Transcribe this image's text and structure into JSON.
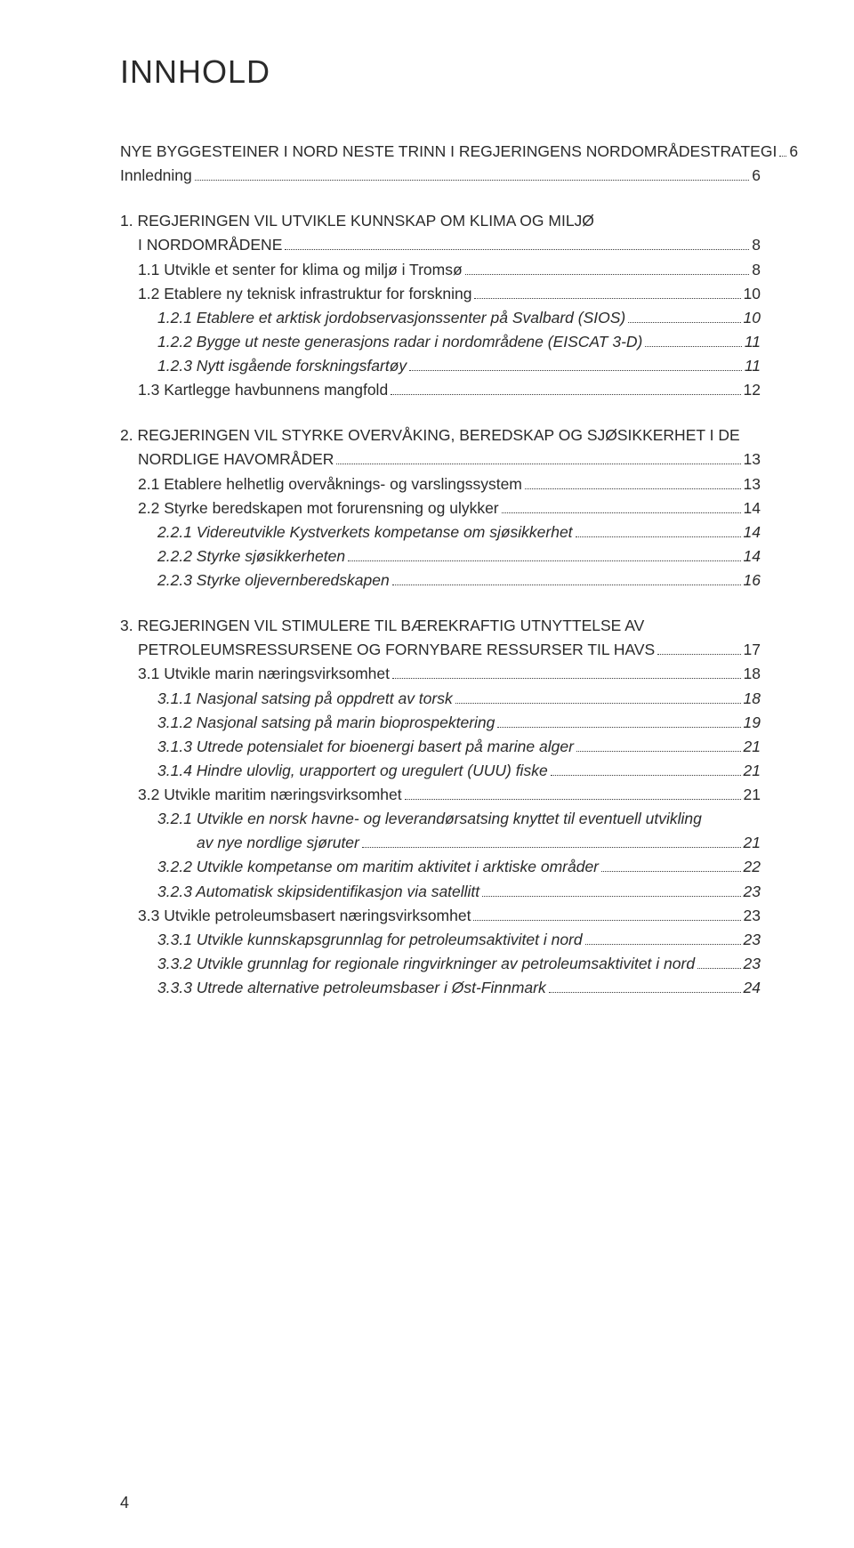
{
  "title": "INNHOLD",
  "page_number": "4",
  "colors": {
    "text": "#2a2a2a",
    "bg": "#ffffff"
  },
  "font": {
    "title_size": 36,
    "body_size": 17.5
  },
  "lines": [
    {
      "type": "leader",
      "lvl": "lvl0",
      "label": "NYE BYGGESTEINER I NORD NESTE TRINN I REGJERINGENS NORDOMRÅDESTRATEGI",
      "page": "6"
    },
    {
      "type": "leader",
      "lvl": "lvl0",
      "label": "Innledning",
      "page": "6"
    },
    {
      "type": "gap"
    },
    {
      "type": "plain",
      "lvl": "lvl0",
      "label": "1. REGJERINGEN VIL UTVIKLE KUNNSKAP OM KLIMA OG MILJØ"
    },
    {
      "type": "leader",
      "lvl": "lvl1",
      "label": "I NORDOMRÅDENE",
      "page": "8"
    },
    {
      "type": "leader",
      "lvl": "lvl1",
      "label": "1.1 Utvikle et senter for klima og miljø i Tromsø",
      "page": "8"
    },
    {
      "type": "leader",
      "lvl": "lvl1",
      "label": "1.2 Etablere ny teknisk infrastruktur for forskning",
      "page": "10"
    },
    {
      "type": "leader",
      "lvl": "lvl2",
      "label": "1.2.1  Etablere et arktisk jordobservasjonssenter på Svalbard  (SIOS)",
      "page": "10",
      "italic": true
    },
    {
      "type": "leader",
      "lvl": "lvl2",
      "label": "1.2.2  Bygge ut neste generasjons radar i nordområdene  (EISCAT 3-D)",
      "page": "11",
      "italic": true
    },
    {
      "type": "leader",
      "lvl": "lvl2",
      "label": "1.2.3  Nytt isgående forskningsfartøy",
      "page": "11",
      "italic": true
    },
    {
      "type": "leader",
      "lvl": "lvl1",
      "label": "1.3  Kartlegge havbunnens mangfold",
      "page": "12"
    },
    {
      "type": "gap"
    },
    {
      "type": "plain",
      "lvl": "lvl0",
      "label": "2. REGJERINGEN VIL STYRKE OVERVÅKING, BEREDSKAP OG SJØSIKKERHET I DE"
    },
    {
      "type": "leader",
      "lvl": "lvl1",
      "label": "NORDLIGE HAVOMRÅDER",
      "page": "13"
    },
    {
      "type": "leader",
      "lvl": "lvl1",
      "label": "2.1  Etablere helhetlig overvåknings- og varslingssystem",
      "page": "13"
    },
    {
      "type": "leader",
      "lvl": "lvl1",
      "label": "2.2  Styrke beredskapen mot forurensning og ulykker",
      "page": "14"
    },
    {
      "type": "leader",
      "lvl": "lvl2",
      "label": "2.2.1  Videreutvikle Kystverkets kompetanse om sjøsikkerhet",
      "page": "14",
      "italic": true
    },
    {
      "type": "leader",
      "lvl": "lvl2",
      "label": "2.2.2  Styrke sjøsikkerheten",
      "page": "14",
      "italic": true
    },
    {
      "type": "leader",
      "lvl": "lvl2",
      "label": "2.2.3  Styrke oljevernberedskapen",
      "page": "16",
      "italic": true
    },
    {
      "type": "gap"
    },
    {
      "type": "plain",
      "lvl": "lvl0",
      "label": "3.  REGJERINGEN VIL STIMULERE TIL BÆREKRAFTIG UTNYTTELSE AV"
    },
    {
      "type": "leader",
      "lvl": "lvl1",
      "label": "PETROLEUMSRESSURSENE OG FORNYBARE RESSURSER TIL HAVS",
      "page": "17"
    },
    {
      "type": "leader",
      "lvl": "lvl1",
      "label": "3.1  Utvikle marin næringsvirksomhet",
      "page": "18"
    },
    {
      "type": "leader",
      "lvl": "lvl2",
      "label": "3.1.1  Nasjonal satsing på oppdrett av torsk",
      "page": "18",
      "italic": true
    },
    {
      "type": "leader",
      "lvl": "lvl2",
      "label": "3.1.2  Nasjonal satsing på marin bioprospektering",
      "page": "19",
      "italic": true
    },
    {
      "type": "leader",
      "lvl": "lvl2",
      "label": "3.1.3  Utrede potensialet for bioenergi basert på marine alger",
      "page": "21",
      "italic": true
    },
    {
      "type": "leader",
      "lvl": "lvl2",
      "label": "3.1.4  Hindre ulovlig, urapportert og uregulert (UUU) fiske",
      "page": "21",
      "italic": true
    },
    {
      "type": "leader",
      "lvl": "lvl1",
      "label": "3.2   Utvikle maritim næringsvirksomhet",
      "page": "21"
    },
    {
      "type": "plain",
      "lvl": "lvl2",
      "label": "3.2.1  Utvikle en norsk havne- og leverandørsatsing knyttet til eventuell utvikling",
      "italic": true
    },
    {
      "type": "leader",
      "lvl": "lvl3b",
      "label": "av nye nordlige sjøruter",
      "page": "21",
      "italic": true
    },
    {
      "type": "leader",
      "lvl": "lvl2",
      "label": "3.2.2  Utvikle kompetanse om maritim aktivitet i arktiske områder",
      "page": "22",
      "italic": true
    },
    {
      "type": "leader",
      "lvl": "lvl2",
      "label": "3.2.3  Automatisk skipsidentifikasjon via satellitt",
      "page": "23",
      "italic": true
    },
    {
      "type": "leader",
      "lvl": "lvl1",
      "label": "3.3  Utvikle petroleumsbasert næringsvirksomhet",
      "page": "23"
    },
    {
      "type": "leader",
      "lvl": "lvl2",
      "label": "3.3.1  Utvikle kunnskapsgrunnlag for petroleumsaktivitet i nord",
      "page": "23",
      "italic": true
    },
    {
      "type": "leader",
      "lvl": "lvl2",
      "label": "3.3.2  Utvikle grunnlag for regionale ringvirkninger av petroleumsaktivitet i nord",
      "page": "23",
      "italic": true
    },
    {
      "type": "leader",
      "lvl": "lvl2",
      "label": "3.3.3  Utrede alternative petroleumsbaser i Øst-Finnmark",
      "page": "24",
      "italic": true
    }
  ]
}
